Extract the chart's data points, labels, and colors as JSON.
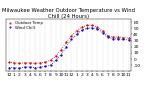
{
  "title": "Milwaukee Weather Outdoor Temperature vs Wind Chill (24 Hours)",
  "title_fontsize": 3.8,
  "background_color": "#ffffff",
  "grid_color": "#888888",
  "ylim": [
    -20,
    65
  ],
  "yticks": [
    -10,
    0,
    10,
    20,
    30,
    40,
    50,
    60
  ],
  "hours": [
    0,
    1,
    2,
    3,
    4,
    5,
    6,
    7,
    8,
    9,
    10,
    11,
    12,
    13,
    14,
    15,
    16,
    17,
    18,
    19,
    20,
    21,
    22,
    23
  ],
  "temp": [
    -5,
    -6,
    -7,
    -6,
    -6,
    -7,
    -6,
    -5,
    -2,
    5,
    15,
    27,
    38,
    46,
    52,
    55,
    55,
    52,
    46,
    38,
    36,
    36,
    35,
    34
  ],
  "windchill": [
    -14,
    -14,
    -15,
    -13,
    -13,
    -14,
    -13,
    -12,
    -10,
    -2,
    7,
    20,
    32,
    40,
    47,
    50,
    51,
    49,
    43,
    36,
    33,
    33,
    32,
    31
  ],
  "temp_color": "#cc0000",
  "windchill_color": "#0000bb",
  "xtick_labels": [
    "12",
    "1",
    "2",
    "3",
    "4",
    "5",
    "6",
    "7",
    "8",
    "9",
    "10",
    "11",
    "12",
    "1",
    "2",
    "3",
    "4",
    "5",
    "6",
    "7",
    "8",
    "9",
    "10",
    "11"
  ],
  "xtick_fontsize": 3.2,
  "ytick_fontsize": 3.2,
  "legend_labels": [
    "Outdoor Temp",
    "Wind Chill"
  ],
  "legend_fontsize": 2.8
}
